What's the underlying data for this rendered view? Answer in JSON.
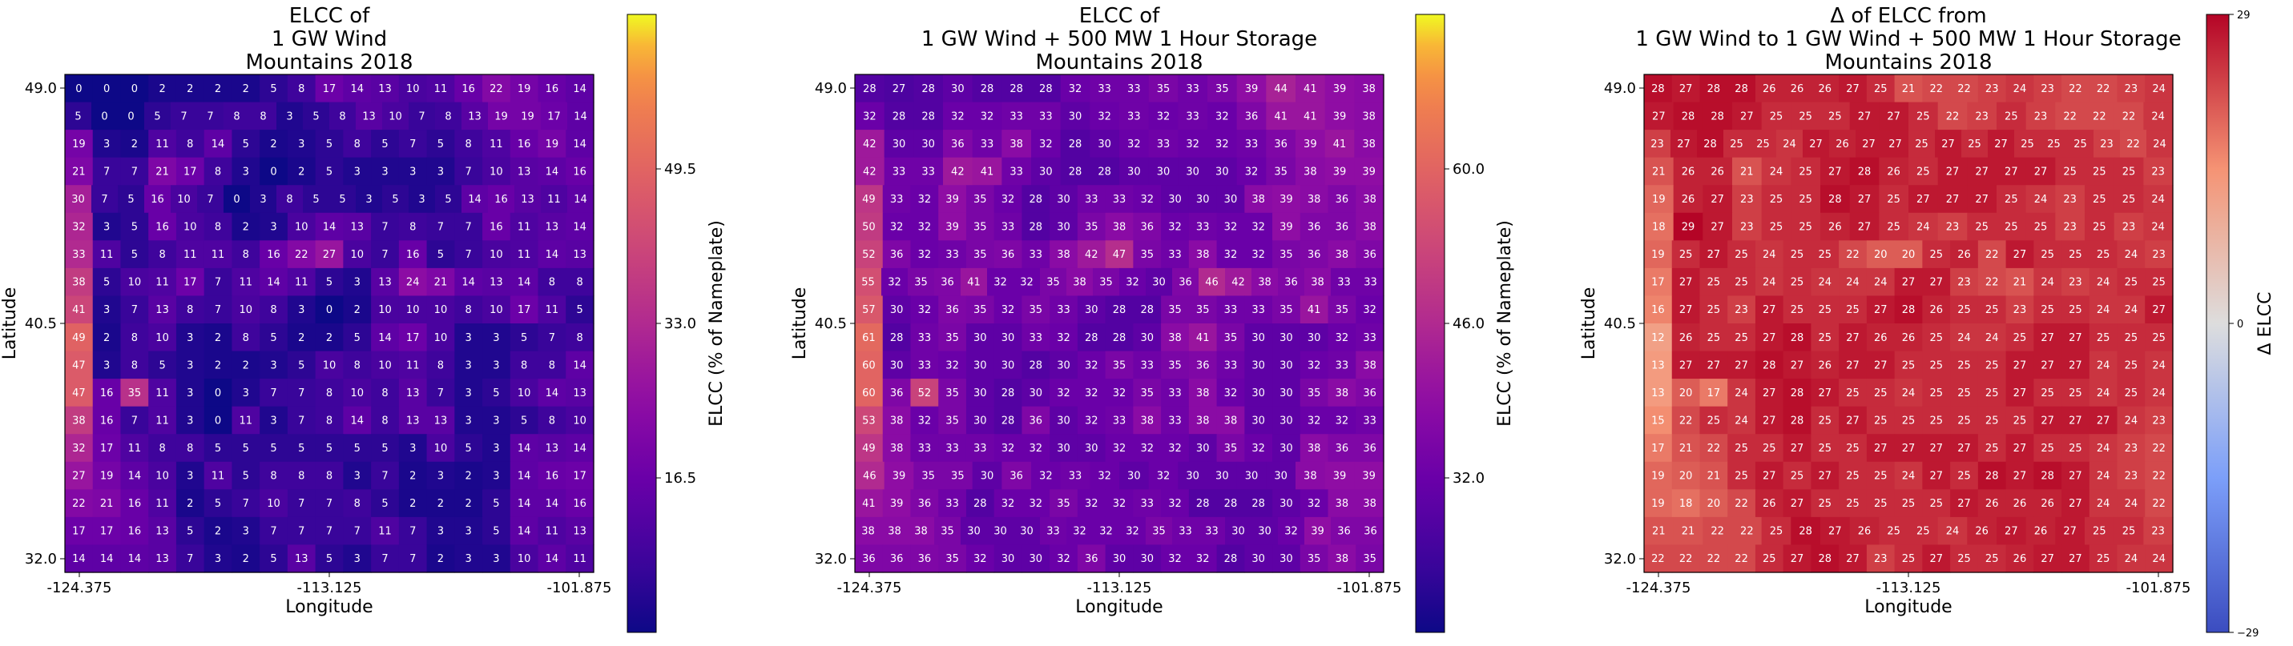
{
  "chart_data": [
    {
      "type": "heatmap",
      "title_lines": [
        "ELCC of",
        "1 GW Wind",
        "Mountains 2018"
      ],
      "xlabel": "Longitude",
      "ylabel": "Latitude",
      "x_ticks": [
        "-124.375",
        "-113.125",
        "-101.875"
      ],
      "y_ticks": [
        "49.0",
        "40.5",
        "32.0"
      ],
      "colormap": "plasma",
      "colorbar_label": "ELCC (% of Nameplate)",
      "colorbar_ticks": [
        "16.5",
        "33.0",
        "49.5"
      ],
      "value_range": [
        0,
        66
      ],
      "rows": [
        [
          0,
          0,
          0,
          2,
          2,
          2,
          2,
          5,
          8,
          17,
          14,
          13,
          10,
          11,
          16,
          22,
          19,
          16,
          14
        ],
        [
          5,
          0,
          0,
          5,
          7,
          7,
          8,
          8,
          3,
          5,
          8,
          13,
          10,
          7,
          8,
          13,
          19,
          19,
          17,
          14
        ],
        [
          19,
          3,
          2,
          11,
          8,
          14,
          5,
          2,
          3,
          5,
          8,
          5,
          7,
          5,
          8,
          11,
          16,
          19,
          14
        ],
        [
          21,
          7,
          7,
          21,
          17,
          8,
          3,
          0,
          2,
          5,
          3,
          3,
          3,
          3,
          7,
          10,
          13,
          14,
          16
        ],
        [
          30,
          7,
          5,
          16,
          10,
          7,
          0,
          3,
          8,
          5,
          5,
          3,
          5,
          3,
          5,
          14,
          16,
          13,
          11,
          14
        ],
        [
          32,
          3,
          5,
          16,
          10,
          8,
          2,
          3,
          10,
          14,
          13,
          7,
          8,
          7,
          7,
          16,
          11,
          13,
          14
        ],
        [
          33,
          11,
          5,
          8,
          11,
          11,
          8,
          16,
          22,
          27,
          10,
          7,
          16,
          5,
          7,
          10,
          11,
          14,
          13
        ],
        [
          38,
          5,
          10,
          11,
          17,
          7,
          11,
          14,
          11,
          5,
          3,
          13,
          24,
          21,
          14,
          13,
          14,
          8,
          8
        ],
        [
          41,
          3,
          7,
          13,
          8,
          7,
          10,
          8,
          3,
          0,
          2,
          10,
          10,
          10,
          8,
          10,
          17,
          11,
          5
        ],
        [
          49,
          2,
          8,
          10,
          3,
          2,
          8,
          5,
          2,
          2,
          5,
          14,
          17,
          10,
          3,
          3,
          5,
          7,
          8
        ],
        [
          47,
          3,
          8,
          5,
          3,
          2,
          2,
          3,
          5,
          10,
          8,
          10,
          11,
          8,
          3,
          3,
          8,
          8,
          14
        ],
        [
          47,
          16,
          35,
          11,
          3,
          0,
          3,
          7,
          7,
          8,
          10,
          8,
          13,
          7,
          3,
          5,
          10,
          14,
          13
        ],
        [
          38,
          16,
          7,
          11,
          3,
          0,
          11,
          3,
          7,
          8,
          14,
          8,
          13,
          13,
          3,
          3,
          5,
          8,
          10
        ],
        [
          32,
          17,
          11,
          8,
          8,
          5,
          5,
          5,
          5,
          5,
          5,
          5,
          3,
          10,
          5,
          3,
          14,
          13,
          14
        ],
        [
          27,
          19,
          14,
          10,
          3,
          11,
          5,
          8,
          8,
          8,
          3,
          7,
          2,
          3,
          2,
          3,
          14,
          16,
          17
        ],
        [
          22,
          21,
          16,
          11,
          2,
          5,
          7,
          10,
          7,
          7,
          8,
          5,
          2,
          2,
          2,
          5,
          14,
          14,
          16
        ],
        [
          17,
          17,
          16,
          13,
          5,
          2,
          3,
          7,
          7,
          7,
          7,
          11,
          7,
          3,
          3,
          5,
          14,
          11,
          13
        ],
        [
          14,
          14,
          14,
          13,
          7,
          3,
          2,
          5,
          13,
          5,
          3,
          7,
          7,
          2,
          3,
          3,
          10,
          14,
          11
        ]
      ]
    },
    {
      "type": "heatmap",
      "title_lines": [
        "ELCC of",
        "1 GW Wind + 500 MW 1 Hour Storage",
        "Mountains 2018"
      ],
      "xlabel": "Longitude",
      "ylabel": "Latitude",
      "x_ticks": [
        "-124.375",
        "-113.125",
        "-101.875"
      ],
      "y_ticks": [
        "49.0",
        "40.5",
        "32.0"
      ],
      "colormap": "plasma",
      "colorbar_label": "ELCC (% of Nameplate)",
      "colorbar_ticks": [
        "32.0",
        "46.0",
        "60.0"
      ],
      "value_range": [
        18,
        74
      ],
      "rows": [
        [
          28,
          27,
          28,
          30,
          28,
          28,
          28,
          32,
          33,
          33,
          35,
          33,
          35,
          39,
          44,
          41,
          39,
          38
        ],
        [
          32,
          28,
          28,
          32,
          32,
          33,
          33,
          30,
          32,
          33,
          32,
          33,
          32,
          36,
          41,
          41,
          39,
          38
        ],
        [
          42,
          30,
          30,
          36,
          33,
          38,
          32,
          28,
          30,
          32,
          33,
          32,
          32,
          33,
          36,
          39,
          41,
          38
        ],
        [
          42,
          33,
          33,
          42,
          41,
          33,
          30,
          28,
          28,
          30,
          30,
          30,
          30,
          32,
          35,
          38,
          39,
          39
        ],
        [
          49,
          33,
          32,
          39,
          35,
          32,
          28,
          30,
          33,
          33,
          32,
          30,
          30,
          30,
          38,
          39,
          38,
          36,
          38
        ],
        [
          50,
          32,
          32,
          39,
          35,
          33,
          28,
          30,
          35,
          38,
          36,
          32,
          33,
          32,
          32,
          39,
          36,
          36,
          38
        ],
        [
          52,
          36,
          32,
          33,
          35,
          36,
          33,
          38,
          42,
          47,
          35,
          33,
          38,
          32,
          32,
          35,
          36,
          38,
          36
        ],
        [
          55,
          32,
          35,
          36,
          41,
          32,
          32,
          35,
          38,
          35,
          32,
          30,
          36,
          46,
          42,
          38,
          36,
          38,
          33,
          33
        ],
        [
          57,
          30,
          32,
          36,
          35,
          32,
          35,
          33,
          30,
          28,
          28,
          35,
          35,
          33,
          33,
          35,
          41,
          35,
          32
        ],
        [
          61,
          28,
          33,
          35,
          30,
          30,
          33,
          32,
          28,
          28,
          30,
          38,
          41,
          35,
          30,
          30,
          30,
          32,
          33
        ],
        [
          60,
          30,
          33,
          32,
          30,
          30,
          28,
          30,
          32,
          35,
          33,
          35,
          36,
          33,
          30,
          30,
          32,
          33,
          38
        ],
        [
          60,
          36,
          52,
          35,
          30,
          28,
          30,
          32,
          32,
          32,
          35,
          33,
          38,
          32,
          30,
          30,
          35,
          38,
          36
        ],
        [
          53,
          38,
          32,
          35,
          30,
          28,
          36,
          30,
          32,
          33,
          38,
          33,
          38,
          38,
          30,
          30,
          32,
          32,
          33
        ],
        [
          49,
          38,
          33,
          33,
          33,
          32,
          32,
          30,
          30,
          32,
          32,
          32,
          30,
          35,
          32,
          30,
          38,
          36,
          36
        ],
        [
          46,
          39,
          35,
          35,
          30,
          36,
          32,
          33,
          32,
          30,
          32,
          30,
          30,
          30,
          30,
          38,
          39,
          39
        ],
        [
          41,
          39,
          36,
          33,
          28,
          32,
          32,
          35,
          32,
          32,
          33,
          32,
          28,
          28,
          28,
          30,
          32,
          38,
          38
        ],
        [
          38,
          38,
          38,
          35,
          30,
          30,
          30,
          33,
          32,
          32,
          32,
          35,
          33,
          33,
          30,
          30,
          32,
          39,
          36,
          36
        ],
        [
          36,
          36,
          36,
          35,
          32,
          30,
          30,
          32,
          36,
          30,
          30,
          32,
          32,
          28,
          30,
          30,
          35,
          38,
          35
        ]
      ]
    },
    {
      "type": "heatmap",
      "title_lines": [
        "Δ of ELCC from",
        "1 GW Wind to 1 GW Wind + 500 MW 1 Hour Storage",
        "Mountains 2018"
      ],
      "xlabel": "Longitude",
      "ylabel": "Latitude",
      "x_ticks": [
        "-124.375",
        "-113.125",
        "-101.875"
      ],
      "y_ticks": [
        "49.0",
        "40.5",
        "32.0"
      ],
      "colormap": "coolwarm",
      "colorbar_label": "Δ ELCC",
      "colorbar_ticks": [
        "29",
        "0",
        "−29"
      ],
      "value_range": [
        -29,
        29
      ],
      "rows": [
        [
          28,
          27,
          28,
          28,
          26,
          26,
          26,
          27,
          25,
          21,
          22,
          22,
          23,
          24,
          23,
          22,
          22,
          23,
          24
        ],
        [
          27,
          28,
          28,
          27,
          25,
          25,
          25,
          27,
          27,
          25,
          22,
          23,
          25,
          23,
          22,
          22,
          22,
          24
        ],
        [
          23,
          27,
          28,
          25,
          25,
          24,
          27,
          26,
          27,
          27,
          25,
          27,
          25,
          27,
          25,
          25,
          25,
          23,
          22,
          24
        ],
        [
          21,
          26,
          26,
          21,
          24,
          25,
          27,
          28,
          26,
          25,
          27,
          27,
          27,
          27,
          25,
          25,
          25,
          23
        ],
        [
          19,
          26,
          27,
          23,
          25,
          25,
          28,
          27,
          25,
          27,
          27,
          27,
          25,
          24,
          23,
          25,
          25,
          24
        ],
        [
          18,
          29,
          27,
          23,
          25,
          25,
          26,
          27,
          25,
          24,
          23,
          25,
          25,
          25,
          23,
          25,
          23,
          24
        ],
        [
          19,
          25,
          27,
          25,
          24,
          25,
          25,
          22,
          20,
          20,
          25,
          26,
          22,
          27,
          25,
          25,
          25,
          24,
          23
        ],
        [
          17,
          27,
          25,
          25,
          24,
          25,
          24,
          24,
          24,
          27,
          27,
          23,
          22,
          21,
          24,
          23,
          24,
          25,
          25
        ],
        [
          16,
          27,
          25,
          23,
          27,
          25,
          25,
          25,
          27,
          28,
          26,
          25,
          25,
          23,
          25,
          25,
          24,
          24,
          27
        ],
        [
          12,
          26,
          25,
          25,
          27,
          28,
          25,
          27,
          26,
          26,
          25,
          24,
          24,
          25,
          27,
          27,
          25,
          25,
          25
        ],
        [
          13,
          27,
          27,
          27,
          28,
          27,
          26,
          27,
          27,
          25,
          25,
          25,
          25,
          27,
          27,
          27,
          24,
          25,
          24
        ],
        [
          13,
          20,
          17,
          24,
          27,
          28,
          27,
          25,
          25,
          24,
          25,
          25,
          25,
          27,
          25,
          25,
          24,
          25,
          24
        ],
        [
          15,
          22,
          25,
          24,
          27,
          28,
          25,
          27,
          25,
          25,
          25,
          25,
          25,
          25,
          27,
          27,
          27,
          24,
          23
        ],
        [
          17,
          21,
          22,
          25,
          25,
          27,
          25,
          25,
          27,
          27,
          27,
          27,
          25,
          27,
          25,
          25,
          24,
          23,
          22
        ],
        [
          19,
          20,
          21,
          25,
          27,
          25,
          27,
          25,
          25,
          24,
          27,
          25,
          28,
          27,
          28,
          27,
          24,
          23,
          22
        ],
        [
          19,
          18,
          20,
          22,
          26,
          27,
          25,
          25,
          25,
          25,
          25,
          27,
          26,
          26,
          26,
          27,
          24,
          24,
          22
        ],
        [
          21,
          21,
          22,
          22,
          25,
          28,
          27,
          26,
          25,
          25,
          24,
          26,
          27,
          26,
          27,
          25,
          25,
          23
        ],
        [
          22,
          22,
          22,
          22,
          25,
          27,
          28,
          27,
          23,
          25,
          27,
          25,
          25,
          26,
          27,
          27,
          25,
          24,
          24
        ]
      ]
    }
  ]
}
